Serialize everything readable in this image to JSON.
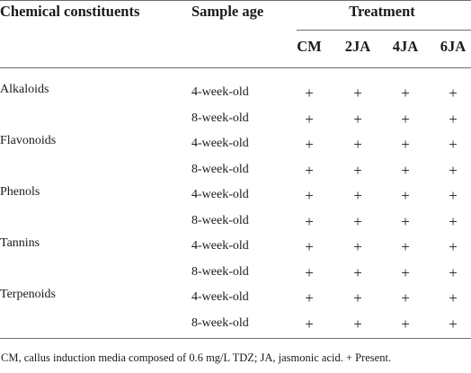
{
  "header": {
    "constituents": "Chemical constituents",
    "sample_age": "Sample age",
    "treatment": "Treatment",
    "treatments": [
      "CM",
      "2JA",
      "4JA",
      "6JA"
    ]
  },
  "rows": [
    {
      "constituent": "Alkaloids",
      "age": "4-week-old",
      "values": [
        "+",
        "+",
        "+",
        "+"
      ]
    },
    {
      "constituent": "",
      "age": "8-week-old",
      "values": [
        "+",
        "+",
        "+",
        "+"
      ]
    },
    {
      "constituent": "Flavonoids",
      "age": "4-week-old",
      "values": [
        "+",
        "+",
        "+",
        "+"
      ]
    },
    {
      "constituent": "",
      "age": "8-week-old",
      "values": [
        "+",
        "+",
        "+",
        "+"
      ]
    },
    {
      "constituent": "Phenols",
      "age": "4-week-old",
      "values": [
        "+",
        "+",
        "+",
        "+"
      ]
    },
    {
      "constituent": "",
      "age": "8-week-old",
      "values": [
        "+",
        "+",
        "+",
        "+"
      ]
    },
    {
      "constituent": "Tannins",
      "age": "4-week-old",
      "values": [
        "+",
        "+",
        "+",
        "+"
      ]
    },
    {
      "constituent": "",
      "age": "8-week-old",
      "values": [
        "+",
        "+",
        "+",
        "+"
      ]
    },
    {
      "constituent": "Terpenoids",
      "age": "4-week-old",
      "values": [
        "+",
        "+",
        "+",
        "+"
      ]
    },
    {
      "constituent": "",
      "age": "8-week-old",
      "values": [
        "+",
        "+",
        "+",
        "+"
      ]
    }
  ],
  "footnote": "CM, callus induction media composed of 0.6 mg/L TDZ; JA, jasmonic acid. + Present."
}
